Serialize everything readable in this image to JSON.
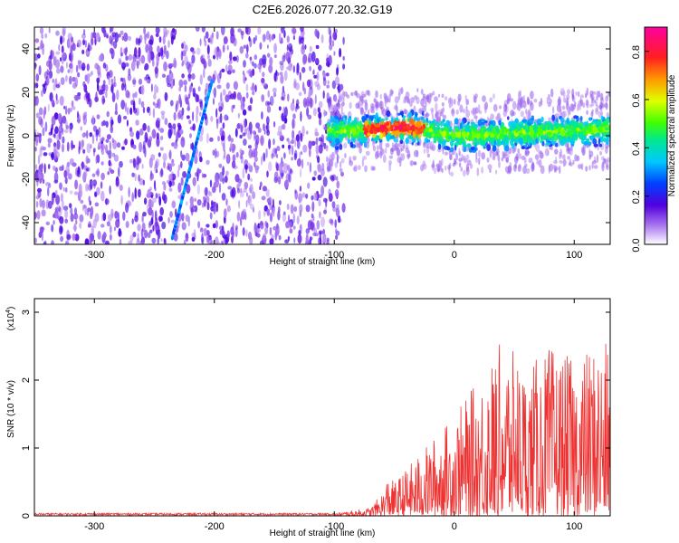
{
  "title": "C2E6.2026.077.20.32.G19",
  "chart_data": [
    {
      "type": "heatmap",
      "title": "C2E6.2026.077.20.32.G19",
      "xlabel": "Height of straight line (km)",
      "ylabel": "Frequency (Hz)",
      "xlim": [
        -350,
        130
      ],
      "ylim": [
        -50,
        50
      ],
      "x_ticks": [
        -300,
        -200,
        -100,
        0,
        100
      ],
      "y_ticks": [
        -40,
        -20,
        0,
        20,
        40
      ],
      "features": {
        "noise_region_x": [
          -350,
          -100
        ],
        "signal_band_x": [
          -105,
          130
        ],
        "signal_band_center_hz": [
          [
            -100,
            2
          ],
          [
            -60,
            3
          ],
          [
            -40,
            4
          ],
          [
            -20,
            2
          ],
          [
            0,
            0
          ],
          [
            40,
            1
          ],
          [
            80,
            2
          ],
          [
            130,
            3
          ]
        ],
        "diagonal_streak": {
          "x": [
            -235,
            -202
          ],
          "y": [
            -47,
            25
          ]
        }
      },
      "colorbar": {
        "label": "Normalized spectral amplitude",
        "range": [
          0.0,
          0.9
        ],
        "ticks": [
          "0.0",
          "0.2",
          "0.4",
          "0.6",
          "0.8"
        ]
      }
    },
    {
      "type": "line",
      "xlabel": "Height of straight line (km)",
      "ylabel": "SNR (10 * v/v)",
      "y_scale_label": "(x10",
      "y_scale_exp": "4",
      "xlim": [
        -350,
        130
      ],
      "ylim": [
        0,
        3.2
      ],
      "x_ticks": [
        -300,
        -200,
        -100,
        0,
        100
      ],
      "y_ticks": [
        0,
        1,
        2,
        3
      ],
      "color": "#ee3333",
      "series": [
        {
          "name": "SNR",
          "x": [
            -350,
            -100,
            -70,
            -60,
            -55,
            -50,
            -40,
            -30,
            -20,
            -10,
            0,
            20,
            40,
            60,
            80,
            100,
            120,
            130
          ],
          "upper_envelope": [
            0.03,
            0.04,
            0.12,
            0.35,
            0.6,
            0.5,
            0.7,
            0.9,
            1.1,
            1.3,
            1.5,
            2.0,
            2.6,
            2.2,
            2.5,
            2.3,
            2.6,
            2.5
          ]
        }
      ]
    }
  ]
}
